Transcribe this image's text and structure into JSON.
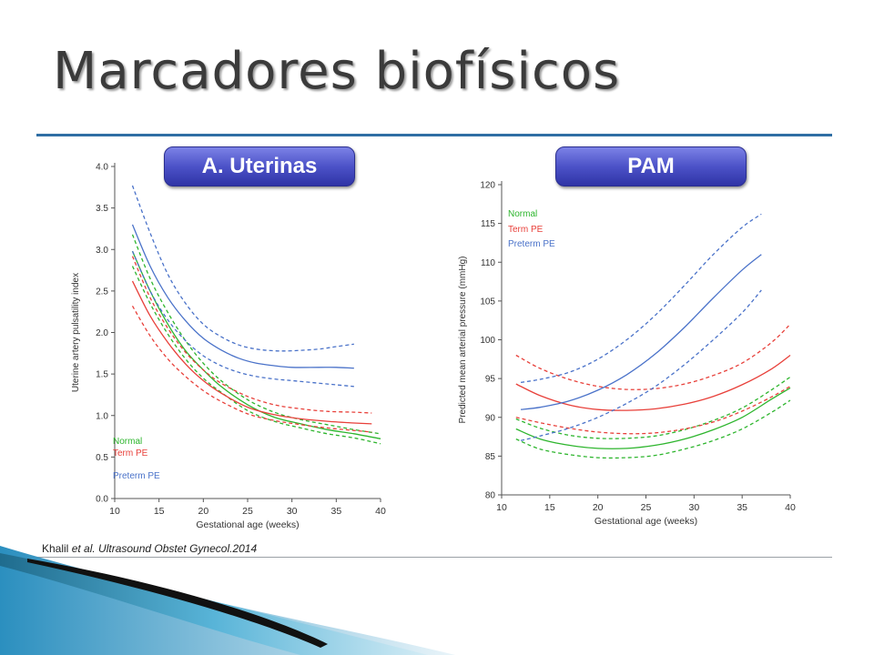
{
  "slide": {
    "title": "Marcadores biofísicos",
    "badge_left": "A. Uterinas",
    "badge_right": "PAM",
    "citation_author": "Khalil ",
    "citation_etal": "et al. Ultrasound Obstet Gynecol.",
    "citation_year": "2014"
  },
  "colors": {
    "normal": "#2db52d",
    "term": "#e8403a",
    "preterm": "#4a72c9",
    "rule": "#2f6ea4",
    "badge": "#4c52c8"
  },
  "chart_data": [
    {
      "type": "line",
      "xlabel": "Gestational age (weeks)",
      "ylabel": "Uterine artery pulsatility index",
      "xlim": [
        10,
        40
      ],
      "ylim": [
        0.0,
        4.0
      ],
      "xticks": [
        "10",
        "15",
        "20",
        "25",
        "30",
        "35",
        "40"
      ],
      "yticks": [
        "0.0",
        "0.5",
        "1.0",
        "1.5",
        "2.0",
        "2.5",
        "3.0",
        "3.5",
        "4.0"
      ],
      "legend": [
        "Normal",
        "Term PE",
        "Preterm PE"
      ],
      "legend_position": "bottom-left",
      "series": [
        {
          "name": "Normal",
          "group": "normal",
          "style": "solid",
          "x": [
            12,
            14,
            16,
            18,
            20,
            22,
            25,
            28,
            31,
            34,
            37,
            40
          ],
          "y": [
            2.98,
            2.5,
            2.1,
            1.78,
            1.55,
            1.35,
            1.13,
            0.98,
            0.9,
            0.83,
            0.78,
            0.72
          ]
        },
        {
          "name": "Normal upper",
          "group": "normal",
          "style": "dashed",
          "x": [
            12,
            14,
            16,
            18,
            20,
            22,
            25,
            28,
            31,
            34,
            37,
            40
          ],
          "y": [
            3.18,
            2.65,
            2.24,
            1.9,
            1.63,
            1.42,
            1.19,
            1.04,
            0.95,
            0.89,
            0.83,
            0.78
          ]
        },
        {
          "name": "Normal lower",
          "group": "normal",
          "style": "dashed",
          "x": [
            12,
            14,
            16,
            18,
            20,
            22,
            25,
            28,
            31,
            34,
            37,
            40
          ],
          "y": [
            2.8,
            2.35,
            1.98,
            1.68,
            1.45,
            1.28,
            1.06,
            0.93,
            0.85,
            0.78,
            0.73,
            0.66
          ]
        },
        {
          "name": "Term PE",
          "group": "term",
          "style": "solid",
          "x": [
            12,
            14,
            16,
            18,
            20,
            22,
            25,
            28,
            31,
            34,
            37,
            39
          ],
          "y": [
            2.62,
            2.2,
            1.88,
            1.62,
            1.42,
            1.27,
            1.1,
            1.01,
            0.96,
            0.93,
            0.91,
            0.9
          ]
        },
        {
          "name": "Term PE upper",
          "group": "term",
          "style": "dashed",
          "x": [
            12,
            14,
            16,
            18,
            20,
            22,
            25,
            28,
            31,
            34,
            37,
            39
          ],
          "y": [
            2.92,
            2.42,
            2.05,
            1.76,
            1.55,
            1.39,
            1.23,
            1.13,
            1.08,
            1.05,
            1.04,
            1.03
          ]
        },
        {
          "name": "Term PE lower",
          "group": "term",
          "style": "dashed",
          "x": [
            12,
            14,
            16,
            18,
            20,
            22,
            25,
            28,
            31,
            34,
            37,
            39
          ],
          "y": [
            2.32,
            1.96,
            1.68,
            1.47,
            1.3,
            1.17,
            1.02,
            0.94,
            0.89,
            0.85,
            0.82,
            0.8
          ]
        },
        {
          "name": "Preterm PE",
          "group": "preterm",
          "style": "solid",
          "x": [
            12,
            14,
            16,
            18,
            20,
            22,
            24,
            26,
            28,
            30,
            33,
            35,
            37
          ],
          "y": [
            3.3,
            2.8,
            2.42,
            2.14,
            1.93,
            1.79,
            1.69,
            1.63,
            1.6,
            1.58,
            1.58,
            1.58,
            1.57
          ]
        },
        {
          "name": "Preterm PE upper",
          "group": "preterm",
          "style": "dashed",
          "x": [
            12,
            14,
            16,
            18,
            20,
            22,
            24,
            26,
            28,
            30,
            33,
            35,
            37
          ],
          "y": [
            3.77,
            3.2,
            2.7,
            2.35,
            2.1,
            1.95,
            1.85,
            1.8,
            1.78,
            1.78,
            1.8,
            1.83,
            1.86
          ]
        },
        {
          "name": "Preterm PE lower",
          "group": "preterm",
          "style": "dashed",
          "x": [
            12,
            14,
            16,
            18,
            20,
            22,
            24,
            26,
            28,
            30,
            33,
            35,
            37
          ],
          "y": [
            2.98,
            2.5,
            2.15,
            1.9,
            1.72,
            1.6,
            1.52,
            1.47,
            1.44,
            1.42,
            1.39,
            1.37,
            1.35
          ]
        }
      ]
    },
    {
      "type": "line",
      "xlabel": "Gestational age (weeks)",
      "ylabel": "Predicted mean arterial pressure (mmHg)",
      "xlim": [
        10,
        40
      ],
      "ylim": [
        80,
        120
      ],
      "xticks": [
        "10",
        "15",
        "20",
        "25",
        "30",
        "35",
        "40"
      ],
      "yticks": [
        "80",
        "85",
        "90",
        "95",
        "100",
        "105",
        "110",
        "115",
        "120"
      ],
      "legend": [
        "Normal",
        "Term PE",
        "Preterm PE"
      ],
      "legend_position": "top-left",
      "series": [
        {
          "name": "Normal",
          "group": "normal",
          "style": "solid",
          "x": [
            11.5,
            14,
            17,
            20,
            23,
            26,
            29,
            32,
            35,
            38,
            40
          ],
          "y": [
            88.5,
            87.2,
            86.4,
            86.0,
            86.0,
            86.4,
            87.2,
            88.4,
            90.0,
            92.3,
            93.8
          ]
        },
        {
          "name": "Normal upper",
          "group": "normal",
          "style": "dashed",
          "x": [
            11.5,
            14,
            17,
            20,
            23,
            26,
            29,
            32,
            35,
            38,
            40
          ],
          "y": [
            89.8,
            88.6,
            87.7,
            87.3,
            87.3,
            87.6,
            88.4,
            89.6,
            91.2,
            93.5,
            95.2
          ]
        },
        {
          "name": "Normal lower",
          "group": "normal",
          "style": "dashed",
          "x": [
            11.5,
            14,
            17,
            20,
            23,
            26,
            29,
            32,
            35,
            38,
            40
          ],
          "y": [
            87.2,
            85.9,
            85.2,
            84.8,
            84.8,
            85.1,
            85.9,
            87.0,
            88.5,
            90.6,
            92.2
          ]
        },
        {
          "name": "Term PE",
          "group": "term",
          "style": "solid",
          "x": [
            11.5,
            14,
            17,
            20,
            23,
            26,
            29,
            32,
            35,
            38,
            40
          ],
          "y": [
            94.3,
            92.8,
            91.6,
            91.0,
            90.9,
            91.1,
            91.7,
            92.7,
            94.2,
            96.2,
            98.0
          ]
        },
        {
          "name": "Term PE upper",
          "group": "term",
          "style": "dashed",
          "x": [
            11.5,
            14,
            17,
            20,
            23,
            26,
            29,
            32,
            35,
            38,
            40
          ],
          "y": [
            98.0,
            96.3,
            94.9,
            94.0,
            93.6,
            93.7,
            94.3,
            95.4,
            97.0,
            99.6,
            102.0
          ]
        },
        {
          "name": "Term PE lower",
          "group": "term",
          "style": "dashed",
          "x": [
            11.5,
            14,
            17,
            20,
            23,
            26,
            29,
            32,
            35,
            38,
            40
          ],
          "y": [
            90.0,
            89.3,
            88.6,
            88.1,
            87.9,
            88.0,
            88.5,
            89.4,
            90.8,
            92.6,
            94.0
          ]
        },
        {
          "name": "Preterm PE",
          "group": "preterm",
          "style": "solid",
          "x": [
            12,
            14,
            17,
            20,
            23,
            26,
            29,
            32,
            35,
            37
          ],
          "y": [
            91.0,
            91.3,
            92.1,
            93.5,
            95.5,
            98.2,
            101.6,
            105.4,
            109.0,
            111.0
          ]
        },
        {
          "name": "Preterm PE upper",
          "group": "preterm",
          "style": "dashed",
          "x": [
            12,
            14,
            17,
            20,
            23,
            26,
            29,
            32,
            35,
            37
          ],
          "y": [
            94.5,
            94.9,
            95.8,
            97.5,
            100.0,
            103.2,
            107.0,
            111.0,
            114.5,
            116.2
          ]
        },
        {
          "name": "Preterm PE lower",
          "group": "preterm",
          "style": "dashed",
          "x": [
            12,
            14,
            17,
            20,
            23,
            26,
            29,
            32,
            35,
            37
          ],
          "y": [
            87.0,
            87.6,
            88.6,
            90.0,
            91.8,
            94.0,
            96.8,
            100.0,
            103.5,
            106.4
          ]
        }
      ]
    }
  ]
}
